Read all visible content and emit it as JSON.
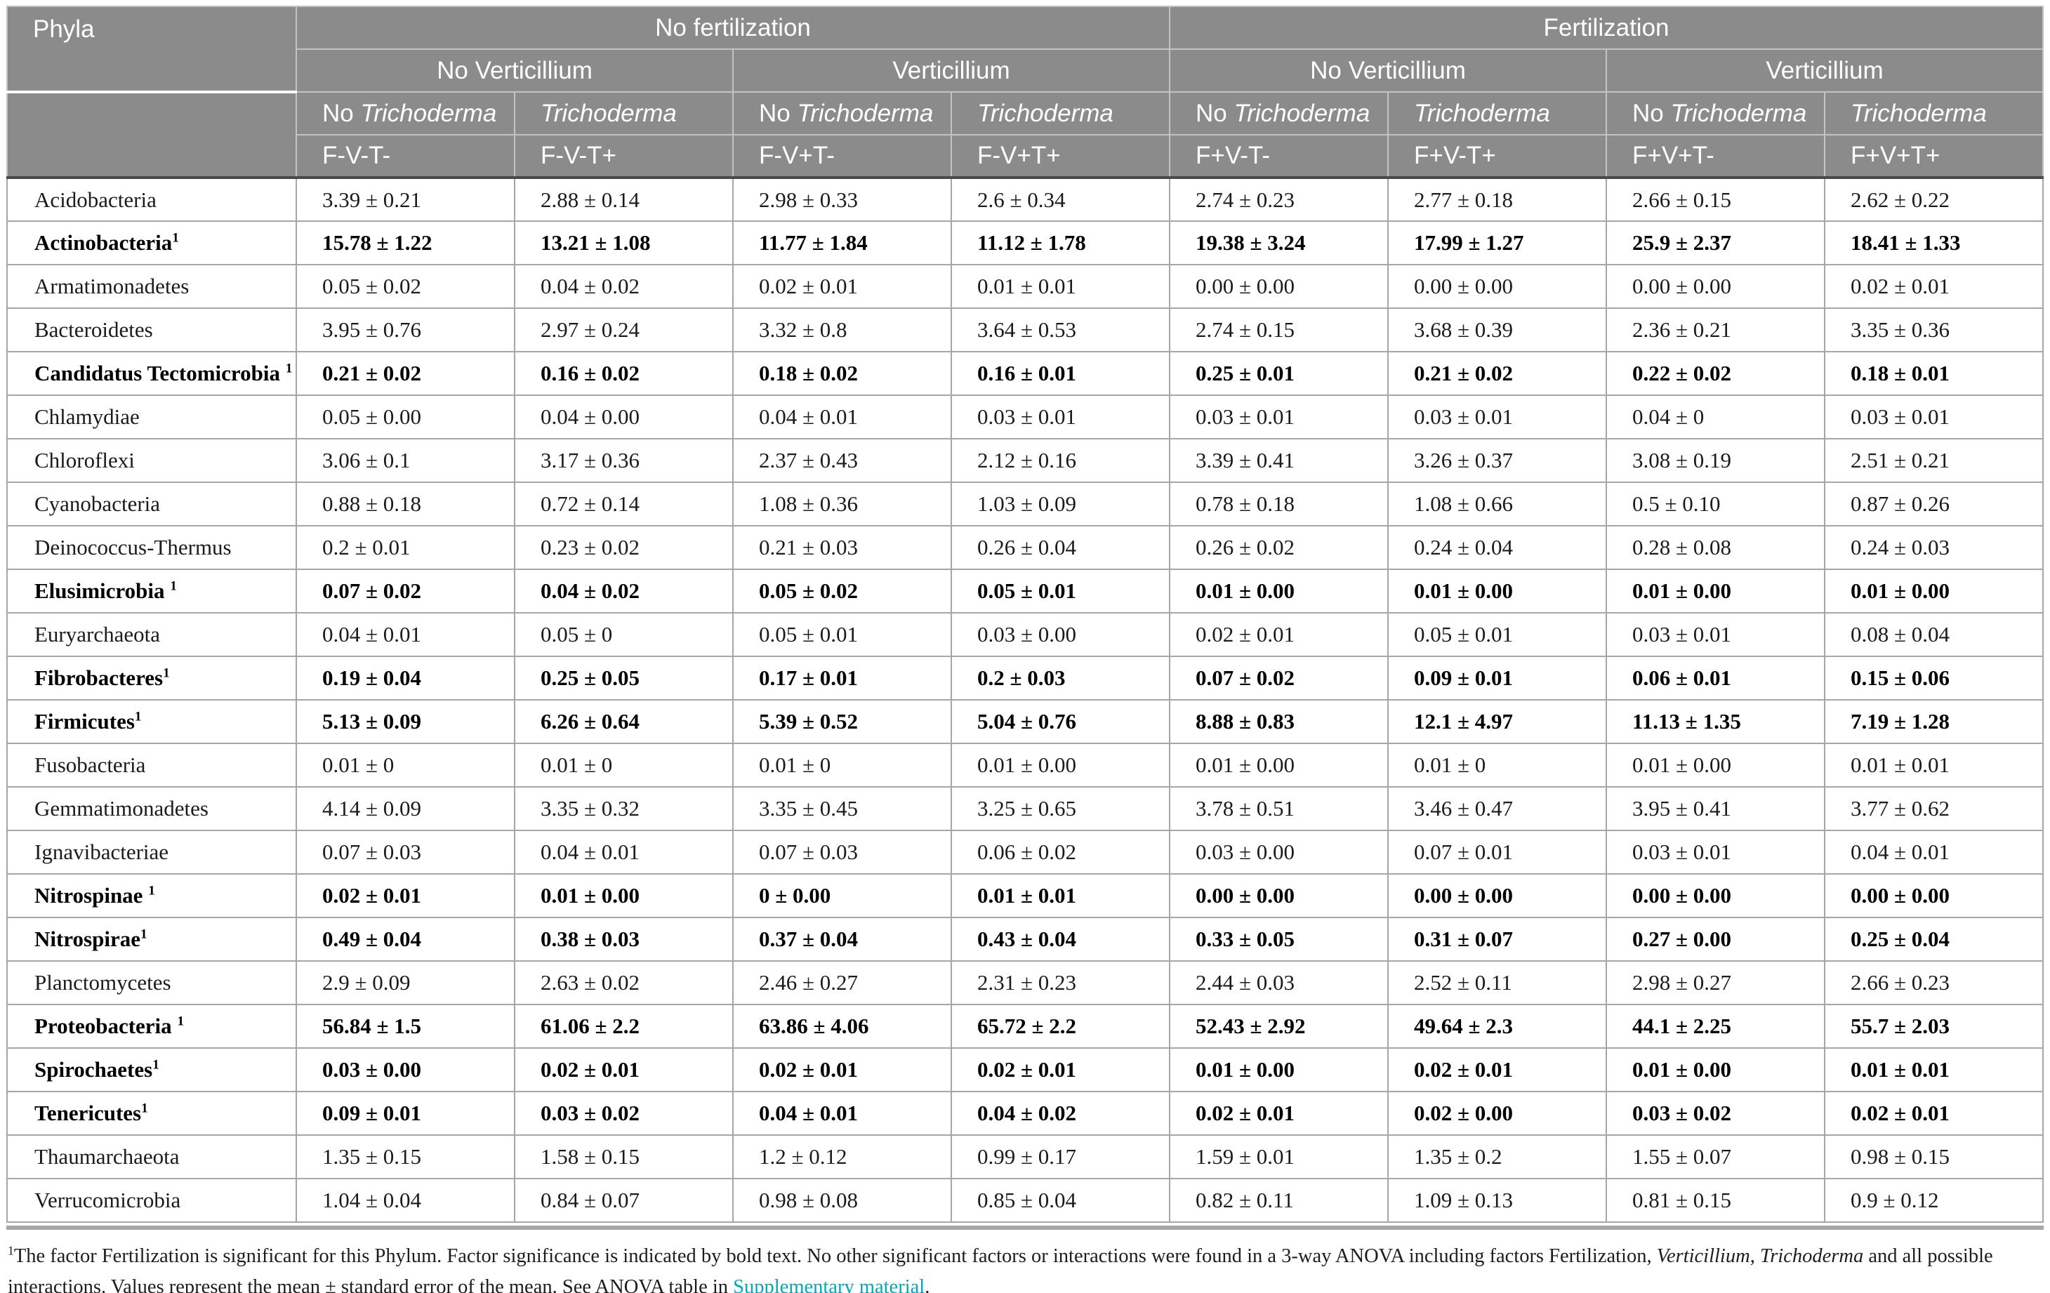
{
  "colors": {
    "header-bg": "#8b8b8b",
    "header-text": "#ffffff",
    "header-line": "#c3c3c3",
    "grid-line": "#a6a6a6",
    "body-text": "#1b1b1b",
    "link": "#00a9b7",
    "divider-dark": "#4a4a4a"
  },
  "table": {
    "corner": "Phyla",
    "fert": [
      "No fertilization",
      "Fertilization"
    ],
    "vert": [
      "No Verticillium",
      "Verticillium",
      "No Verticillium",
      "Verticillium"
    ],
    "trich": [
      {
        "prefix": "No ",
        "name": "Trichoderma"
      },
      {
        "prefix": "",
        "name": "Trichoderma"
      },
      {
        "prefix": "No ",
        "name": "Trichoderma"
      },
      {
        "prefix": "",
        "name": "Trichoderma"
      },
      {
        "prefix": "No ",
        "name": "Trichoderma"
      },
      {
        "prefix": "",
        "name": "Trichoderma"
      },
      {
        "prefix": "No ",
        "name": "Trichoderma"
      },
      {
        "prefix": "",
        "name": "Trichoderma"
      }
    ],
    "codes": [
      "F-V-T-",
      "F-V-T+",
      "F-V+T-",
      "F-V+T+",
      "F+V-T-",
      "F+V-T+",
      "F+V+T-",
      "F+V+T+"
    ],
    "rows": [
      {
        "name": "Acidobacteria",
        "sup": "",
        "bold": false,
        "values": [
          "3.39 ± 0.21",
          "2.88 ± 0.14",
          "2.98 ± 0.33",
          "2.6 ± 0.34",
          "2.74 ± 0.23",
          "2.77 ± 0.18",
          "2.66 ± 0.15",
          "2.62 ± 0.22"
        ]
      },
      {
        "name": "Actinobacteria",
        "sup": "1",
        "bold": true,
        "values": [
          "15.78 ± 1.22",
          "13.21 ± 1.08",
          "11.77 ± 1.84",
          "11.12 ± 1.78",
          "19.38 ± 3.24",
          "17.99 ± 1.27",
          "25.9 ± 2.37",
          "18.41 ± 1.33"
        ]
      },
      {
        "name": "Armatimonadetes",
        "sup": "",
        "bold": false,
        "values": [
          "0.05 ± 0.02",
          "0.04 ± 0.02",
          "0.02 ± 0.01",
          "0.01 ± 0.01",
          "0.00 ± 0.00",
          "0.00 ± 0.00",
          "0.00 ± 0.00",
          "0.02 ± 0.01"
        ]
      },
      {
        "name": "Bacteroidetes",
        "sup": "",
        "bold": false,
        "values": [
          "3.95 ± 0.76",
          "2.97 ± 0.24",
          "3.32 ± 0.8",
          "3.64 ± 0.53",
          "2.74 ± 0.15",
          "3.68 ± 0.39",
          "2.36 ± 0.21",
          "3.35 ± 0.36"
        ]
      },
      {
        "name": "Candidatus Tectomicrobia ",
        "sup": "1",
        "bold": true,
        "values": [
          "0.21 ± 0.02",
          "0.16 ± 0.02",
          "0.18 ± 0.02",
          "0.16 ± 0.01",
          "0.25 ± 0.01",
          "0.21 ± 0.02",
          "0.22 ± 0.02",
          "0.18 ± 0.01"
        ]
      },
      {
        "name": "Chlamydiae",
        "sup": "",
        "bold": false,
        "values": [
          "0.05 ± 0.00",
          "0.04 ± 0.00",
          "0.04 ± 0.01",
          "0.03 ± 0.01",
          "0.03 ± 0.01",
          "0.03 ± 0.01",
          "0.04 ± 0",
          "0.03 ± 0.01"
        ]
      },
      {
        "name": "Chloroflexi",
        "sup": "",
        "bold": false,
        "values": [
          "3.06 ± 0.1",
          "3.17 ± 0.36",
          "2.37 ± 0.43",
          "2.12 ± 0.16",
          "3.39 ± 0.41",
          "3.26 ± 0.37",
          "3.08 ± 0.19",
          "2.51 ± 0.21"
        ]
      },
      {
        "name": "Cyanobacteria",
        "sup": "",
        "bold": false,
        "values": [
          "0.88 ± 0.18",
          "0.72 ± 0.14",
          "1.08 ± 0.36",
          "1.03 ± 0.09",
          "0.78 ± 0.18",
          "1.08 ± 0.66",
          "0.5 ± 0.10",
          "0.87 ± 0.26"
        ]
      },
      {
        "name": "Deinococcus-Thermus",
        "sup": "",
        "bold": false,
        "values": [
          "0.2 ± 0.01",
          "0.23 ± 0.02",
          "0.21 ± 0.03",
          "0.26 ± 0.04",
          "0.26 ± 0.02",
          "0.24 ± 0.04",
          "0.28 ± 0.08",
          "0.24 ± 0.03"
        ]
      },
      {
        "name": "Elusimicrobia ",
        "sup": "1",
        "bold": true,
        "values": [
          "0.07 ± 0.02",
          "0.04 ± 0.02",
          "0.05 ± 0.02",
          "0.05 ± 0.01",
          "0.01 ± 0.00",
          "0.01 ± 0.00",
          "0.01 ± 0.00",
          "0.01 ± 0.00"
        ]
      },
      {
        "name": "Euryarchaeota",
        "sup": "",
        "bold": false,
        "values": [
          "0.04 ± 0.01",
          "0.05 ± 0",
          "0.05 ± 0.01",
          "0.03 ± 0.00",
          "0.02 ± 0.01",
          "0.05 ± 0.01",
          "0.03 ± 0.01",
          "0.08 ± 0.04"
        ]
      },
      {
        "name": "Fibrobacteres",
        "sup": "1",
        "bold": true,
        "values": [
          "0.19 ± 0.04",
          "0.25 ± 0.05",
          "0.17 ± 0.01",
          "0.2 ± 0.03",
          "0.07 ± 0.02",
          "0.09 ± 0.01",
          "0.06 ± 0.01",
          "0.15 ± 0.06"
        ]
      },
      {
        "name": "Firmicutes",
        "sup": "1",
        "bold": true,
        "values": [
          "5.13 ± 0.09",
          "6.26 ± 0.64",
          "5.39 ± 0.52",
          "5.04 ± 0.76",
          "8.88 ± 0.83",
          "12.1 ± 4.97",
          "11.13 ± 1.35",
          "7.19 ± 1.28"
        ]
      },
      {
        "name": "Fusobacteria",
        "sup": "",
        "bold": false,
        "values": [
          "0.01 ± 0",
          "0.01 ± 0",
          "0.01 ± 0",
          "0.01 ± 0.00",
          "0.01 ± 0.00",
          "0.01 ± 0",
          "0.01 ± 0.00",
          "0.01 ± 0.01"
        ]
      },
      {
        "name": "Gemmatimonadetes",
        "sup": "",
        "bold": false,
        "values": [
          "4.14 ± 0.09",
          "3.35 ± 0.32",
          "3.35 ± 0.45",
          "3.25 ± 0.65",
          "3.78 ± 0.51",
          "3.46 ± 0.47",
          "3.95 ± 0.41",
          "3.77 ± 0.62"
        ]
      },
      {
        "name": "Ignavibacteriae",
        "sup": "",
        "bold": false,
        "values": [
          "0.07 ± 0.03",
          "0.04 ± 0.01",
          "0.07 ± 0.03",
          "0.06 ± 0.02",
          "0.03 ± 0.00",
          "0.07 ± 0.01",
          "0.03 ± 0.01",
          "0.04 ± 0.01"
        ]
      },
      {
        "name": "Nitrospinae ",
        "sup": "1",
        "bold": true,
        "values": [
          "0.02 ± 0.01",
          "0.01 ± 0.00",
          "0 ± 0.00",
          "0.01 ± 0.01",
          "0.00 ± 0.00",
          "0.00 ± 0.00",
          "0.00 ± 0.00",
          "0.00 ± 0.00"
        ]
      },
      {
        "name": "Nitrospirae",
        "sup": "1",
        "bold": true,
        "values": [
          "0.49 ± 0.04",
          "0.38 ± 0.03",
          "0.37 ± 0.04",
          "0.43 ± 0.04",
          "0.33 ± 0.05",
          "0.31 ± 0.07",
          "0.27 ± 0.00",
          "0.25 ± 0.04"
        ]
      },
      {
        "name": "Planctomycetes",
        "sup": "",
        "bold": false,
        "values": [
          "2.9 ± 0.09",
          "2.63 ± 0.02",
          "2.46 ± 0.27",
          "2.31 ± 0.23",
          "2.44 ± 0.03",
          "2.52 ± 0.11",
          "2.98 ± 0.27",
          "2.66 ± 0.23"
        ]
      },
      {
        "name": "Proteobacteria ",
        "sup": "1",
        "bold": true,
        "values": [
          "56.84 ± 1.5",
          "61.06 ± 2.2",
          "63.86 ± 4.06",
          "65.72 ± 2.2",
          "52.43 ± 2.92",
          "49.64 ± 2.3",
          "44.1 ± 2.25",
          "55.7 ± 2.03"
        ]
      },
      {
        "name": "Spirochaetes",
        "sup": "1",
        "bold": true,
        "values": [
          "0.03 ± 0.00",
          "0.02 ± 0.01",
          "0.02 ± 0.01",
          "0.02 ± 0.01",
          "0.01 ± 0.00",
          "0.02 ± 0.01",
          "0.01 ± 0.00",
          "0.01 ± 0.01"
        ]
      },
      {
        "name": "Tenericutes",
        "sup": "1",
        "bold": true,
        "values": [
          "0.09 ± 0.01",
          "0.03 ± 0.02",
          "0.04 ± 0.01",
          "0.04 ± 0.02",
          "0.02 ± 0.01",
          "0.02 ± 0.00",
          "0.03 ± 0.02",
          "0.02 ± 0.01"
        ]
      },
      {
        "name": "Thaumarchaeota",
        "sup": "",
        "bold": false,
        "values": [
          "1.35 ± 0.15",
          "1.58 ± 0.15",
          "1.2 ± 0.12",
          "0.99 ± 0.17",
          "1.59 ± 0.01",
          "1.35 ± 0.2",
          "1.55 ± 0.07",
          "0.98 ± 0.15"
        ]
      },
      {
        "name": "Verrucomicrobia",
        "sup": "",
        "bold": false,
        "values": [
          "1.04 ± 0.04",
          "0.84 ± 0.07",
          "0.98 ± 0.08",
          "0.85 ± 0.04",
          "0.82 ± 0.11",
          "1.09 ± 0.13",
          "0.81 ± 0.15",
          "0.9 ± 0.12"
        ]
      }
    ]
  },
  "footnote": {
    "sup": "1",
    "part1": "The factor Fertilization is significant for this Phylum. Factor significance is indicated by bold text. No other significant factors or interactions were found in a 3-way ANOVA including factors Fertilization, ",
    "italic1": "Verticillium",
    "part2": ", ",
    "italic2": "Trichoderma",
    "part3": " and all possible interactions. Values represent the mean ± standard error of the mean. See ANOVA table in ",
    "link": "Supplementary material",
    "part4": "."
  }
}
